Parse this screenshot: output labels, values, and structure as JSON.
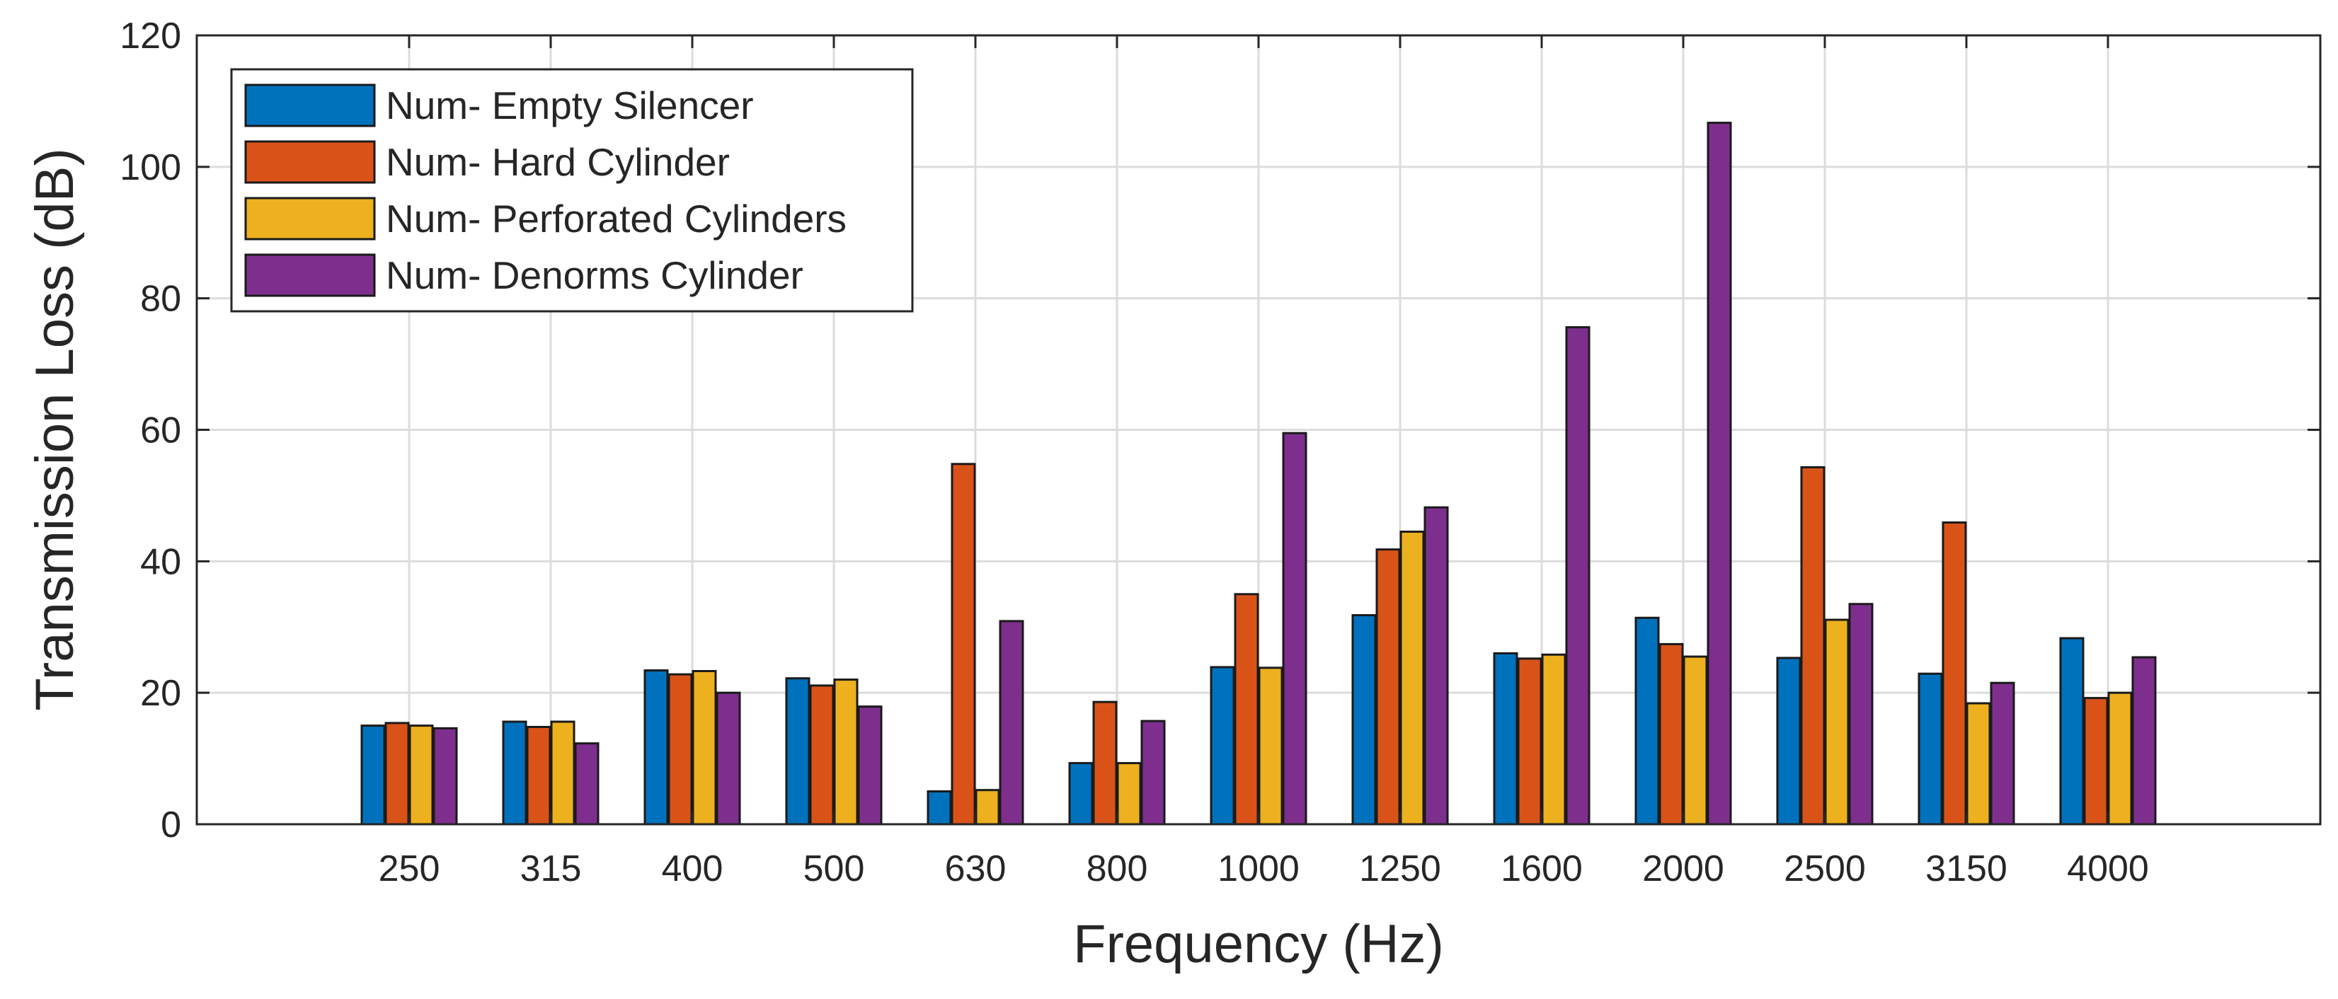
{
  "chart_data": {
    "type": "bar",
    "title": "",
    "xlabel": "Frequency (Hz)",
    "ylabel": "Transmission Loss (dB)",
    "ylim": [
      0,
      120
    ],
    "yticks": [
      0,
      20,
      40,
      60,
      80,
      100,
      120
    ],
    "grid": true,
    "legend_position": "top-left",
    "categories": [
      "250",
      "315",
      "400",
      "500",
      "630",
      "800",
      "1000",
      "1250",
      "1600",
      "2000",
      "2500",
      "3150",
      "4000"
    ],
    "series": [
      {
        "name": "Num- Empty Silencer",
        "color": "#0072BD",
        "values": [
          15,
          15.6,
          23.4,
          22.2,
          5,
          9.3,
          23.9,
          31.8,
          26,
          31.4,
          25.3,
          22.9,
          28.3
        ]
      },
      {
        "name": "Num- Hard Cylinder",
        "color": "#D95319",
        "values": [
          15.4,
          14.8,
          22.8,
          21.1,
          54.8,
          18.6,
          35,
          41.8,
          25.2,
          27.4,
          54.3,
          45.9,
          19.2
        ]
      },
      {
        "name": "Num- Perforated Cylinders",
        "color": "#EDB120",
        "values": [
          15,
          15.6,
          23.3,
          22,
          5.2,
          9.3,
          23.8,
          44.5,
          25.8,
          25.5,
          31.1,
          18.4,
          20
        ]
      },
      {
        "name": "Num- Denorms Cylinder",
        "color": "#7E2F8E",
        "values": [
          14.6,
          12.3,
          20,
          17.9,
          30.9,
          15.7,
          59.5,
          48.2,
          75.6,
          106.7,
          33.5,
          21.5,
          25.4
        ]
      }
    ]
  }
}
